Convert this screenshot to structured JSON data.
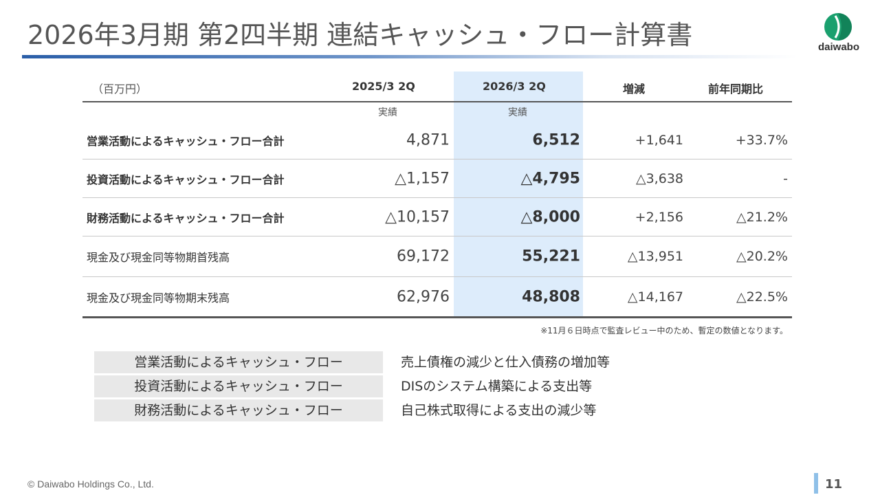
{
  "title": "2026年3月期 第2四半期 連結キャッシュ・フロー計算書",
  "logo": {
    "text": "daiwabo",
    "color_primary": "#1aa06e",
    "color_dark": "#0d6b48"
  },
  "table": {
    "unit": "（百万円）",
    "headers": [
      "2025/3 2Q",
      "2026/3 2Q",
      "増減",
      "前年同期比"
    ],
    "subheaders": [
      "実績",
      "実績"
    ],
    "highlight_color": "#ddecfb",
    "rows": [
      {
        "label": "営業活動によるキャッシュ・フロー合計",
        "prev": "4,871",
        "curr": "6,512",
        "diff": "+1,641",
        "ratio": "+33.7%"
      },
      {
        "label": "投資活動によるキャッシュ・フロー合計",
        "prev": "△1,157",
        "curr": "△4,795",
        "diff": "△3,638",
        "ratio": "-"
      },
      {
        "label": "財務活動によるキャッシュ・フロー合計",
        "prev": "△10,157",
        "curr": "△8,000",
        "diff": "+2,156",
        "ratio": "△21.2%"
      },
      {
        "label": "現金及び現金同等物期首残高",
        "prev": "69,172",
        "curr": "55,221",
        "diff": "△13,951",
        "ratio": "△20.2%"
      },
      {
        "label": "現金及び現金同等物期末残高",
        "prev": "62,976",
        "curr": "48,808",
        "diff": "△14,167",
        "ratio": "△22.5%"
      }
    ]
  },
  "note": "※11月６日時点で監査レビュー中のため、暫定の数値となります。",
  "summary": [
    {
      "category": "営業活動によるキャッシュ・フロー",
      "description": "売上債権の減少と仕入債務の増加等"
    },
    {
      "category": "投資活動によるキャッシュ・フロー",
      "description": "DISのシステム構築による支出等"
    },
    {
      "category": "財務活動によるキャッシュ・フロー",
      "description": "自己株式取得による支出の減少等"
    }
  ],
  "footer": {
    "copyright": "© Daiwabo Holdings Co., Ltd.",
    "page": "11"
  }
}
